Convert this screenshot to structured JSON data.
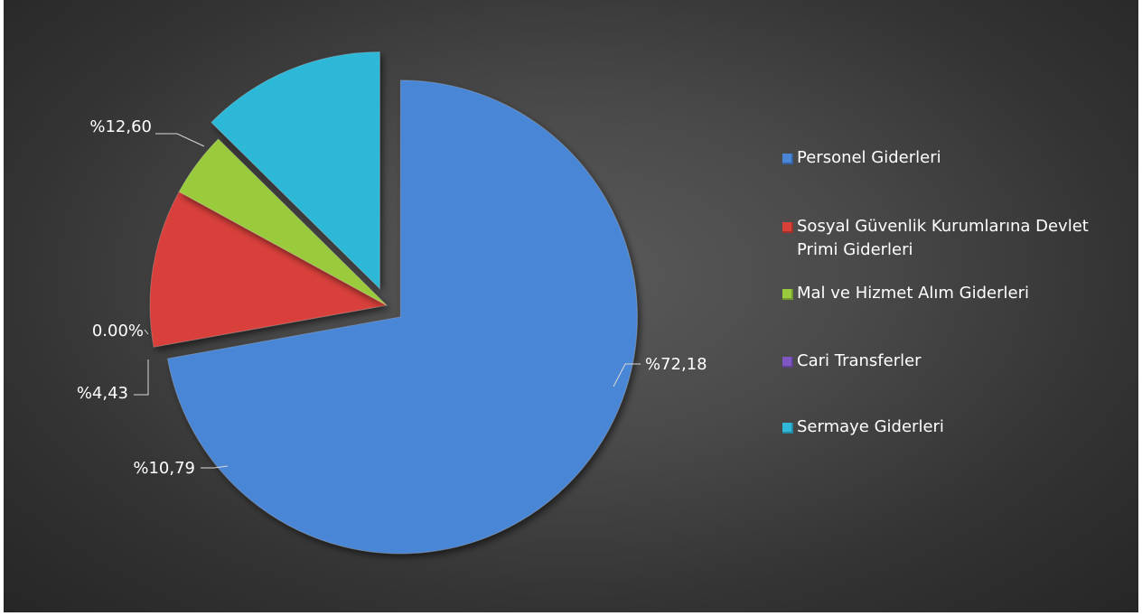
{
  "chart_data": {
    "type": "pie",
    "slices": [
      {
        "name": "Personel Giderleri",
        "value": 72.18,
        "label": "%72,18",
        "color": "#4a86d6",
        "exploded": true
      },
      {
        "name": "Sosyal Güvenlik Kurumlarına Devlet Primi Giderleri",
        "value": 10.79,
        "label": "%10,79",
        "color": "#d9403a",
        "exploded": false
      },
      {
        "name": "Mal ve Hizmet Alım Giderleri",
        "value": 4.43,
        "label": "%4,43",
        "color": "#9acb3c",
        "exploded": false
      },
      {
        "name": "Cari Transferler",
        "value": 0.0,
        "label": "0.00%",
        "color": "#7e57c2",
        "exploded": false
      },
      {
        "name": "Sermaye Giderleri",
        "value": 12.6,
        "label": "%12,60",
        "color": "#2fb8d8",
        "exploded": true
      }
    ],
    "legend_position": "right"
  },
  "legend": {
    "items": [
      {
        "label": "Personel Giderleri",
        "color": "#4a86d6"
      },
      {
        "label": "Sosyal Güvenlik Kurumlarına Devlet Primi Giderleri",
        "color": "#d9403a"
      },
      {
        "label": "Mal ve Hizmet Alım Giderleri",
        "color": "#9acb3c"
      },
      {
        "label": "Cari Transferler",
        "color": "#7e57c2"
      },
      {
        "label": "Sermaye Giderleri",
        "color": "#2fb8d8"
      }
    ]
  }
}
